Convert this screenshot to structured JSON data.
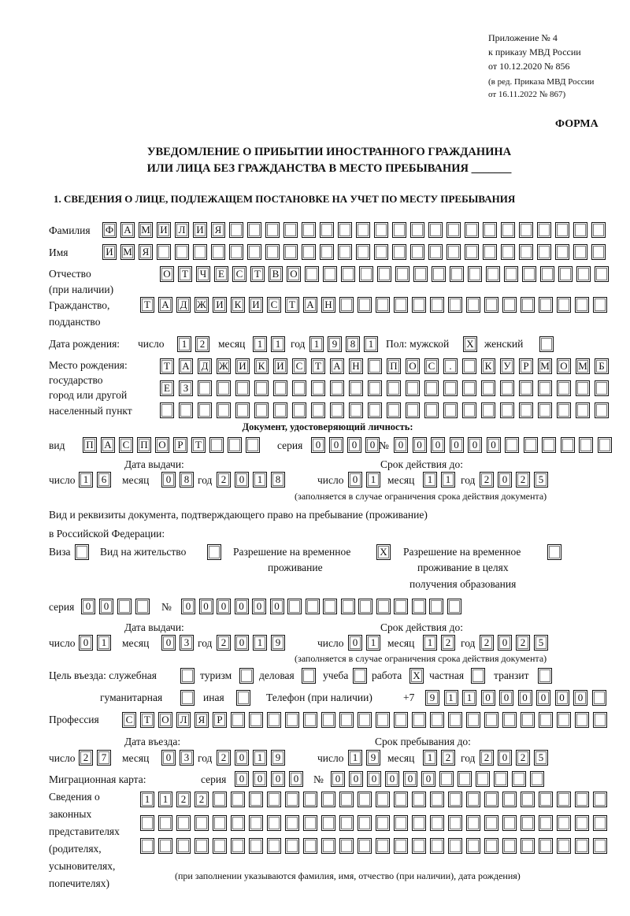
{
  "header": {
    "appendix": "Приложение № 4",
    "order": "к приказу МВД России",
    "order_date": "от 10.12.2020 № 856",
    "revision1": "(в ред. Приказа МВД России",
    "revision2": "от 16.11.2022 № 867)",
    "form": "ФОРМА",
    "title1": "УВЕДОМЛЕНИЕ О ПРИБЫТИИ ИНОСТРАННОГО ГРАЖДАНИНА",
    "title2": "ИЛИ ЛИЦА БЕЗ ГРАЖДАНСТВА В МЕСТО ПРЕБЫВАНИЯ _______",
    "section1": "1. СВЕДЕНИЯ О ЛИЦЕ, ПОДЛЕЖАЩЕМ ПОСТАНОВКЕ НА УЧЕТ ПО МЕСТУ ПРЕБЫВАНИЯ"
  },
  "person": {
    "surname_label": "Фамилия",
    "surname": "ФАМИЛИЯ",
    "name_label": "Имя",
    "name": "ИМЯ",
    "patronymic_label1": "Отчество",
    "patronymic_label2": "(при наличии)",
    "patronymic": "ОТЧЕСТВО",
    "citizenship_label1": "Гражданство,",
    "citizenship_label2": "подданство",
    "citizenship": "ТАДЖИКИСТАН",
    "dob_label": "Дата рождения:",
    "day_label": "число",
    "month_label": "месяц",
    "year_label": "год",
    "dob_day": "12",
    "dob_month": "11",
    "dob_year": "1981",
    "sex_label": "Пол: мужской",
    "male": "X",
    "female_label": "женский",
    "female": "",
    "birthplace_label1": "Место рождения:",
    "birthplace_label2": "государство",
    "birthplace_label3": "город или другой",
    "birthplace_label4": "населенный пункт",
    "birthplace_row1": "ТАДЖИКИСТАН ПОС. КУРМОМБ",
    "birthplace_row2": "ЕЗ",
    "birthplace_row3": ""
  },
  "id_doc": {
    "heading": "Документ, удостоверяющий личность:",
    "type_label": "вид",
    "type": "ПАСПОРТ",
    "series_label": "серия",
    "series": "0000",
    "number_label": "№",
    "number": "000000",
    "issue_label": "Дата выдачи:",
    "valid_label": "Срок действия до:",
    "issue_day": "16",
    "issue_month": "08",
    "issue_year": "2018",
    "valid_day": "01",
    "valid_month": "11",
    "valid_year": "2025",
    "note": "(заполняется в случае ограничения срока действия документа)"
  },
  "stay_doc": {
    "label1": "Вид и реквизиты документа, подтверждающего право на пребывание (проживание)",
    "label2": "в Российской Федерации:",
    "visa_label": "Виза",
    "visa": "",
    "residence_label": "Вид на жительство",
    "residence": "",
    "trp_label1": "Разрешение на временное",
    "trp_label2": "проживание",
    "trp": "X",
    "trp_edu_label1": "Разрешение на временное",
    "trp_edu_label2": "проживание в целях",
    "trp_edu_label3": "получения образования",
    "trp_edu": "",
    "series_label": "серия",
    "series": "00",
    "number_label": "№",
    "number": "000000",
    "issue_label": "Дата выдачи:",
    "valid_label": "Срок действия до:",
    "issue_day": "01",
    "issue_month": "03",
    "issue_year": "2019",
    "valid_day": "01",
    "valid_month": "12",
    "valid_year": "2025",
    "note": "(заполняется в случае ограничения срока действия документа)"
  },
  "purpose": {
    "label": "Цель въезда: служебная",
    "business_trip": "",
    "tourism_label": "туризм",
    "tourism": "",
    "business_label": "деловая",
    "business": "",
    "study_label": "учеба",
    "study": "",
    "work_label": "работа",
    "work": "X",
    "private_label": "частная",
    "private": "",
    "transit_label": "транзит",
    "transit": "",
    "humanitarian_label": "гуманитарная",
    "humanitarian": "",
    "other_label": "иная",
    "other": ""
  },
  "phone": {
    "label": "Телефон (при наличии)",
    "prefix": "+7",
    "value": "911000000"
  },
  "profession": {
    "label": "Профессия",
    "value": "СТОЛЯР"
  },
  "entry": {
    "entry_label": "Дата въезда:",
    "stay_label": "Срок пребывания до:",
    "entry_day": "27",
    "entry_month": "03",
    "entry_year": "2019",
    "stay_day": "19",
    "stay_month": "12",
    "stay_year": "2025"
  },
  "migration_card": {
    "label": "Миграционная карта:",
    "series_label": "серия",
    "series": "0000",
    "number_label": "№",
    "number": "000000"
  },
  "representatives": {
    "label1": "Сведения о",
    "label2": "законных",
    "label3": "представителях",
    "label4": "(родителях,",
    "label5": "усыновителях,",
    "label6": "попечителях)",
    "row1": "1122",
    "row2": "",
    "row3": "",
    "note": "(при заполнении указываются фамилия, имя, отчество (при наличии), дата рождения)"
  }
}
